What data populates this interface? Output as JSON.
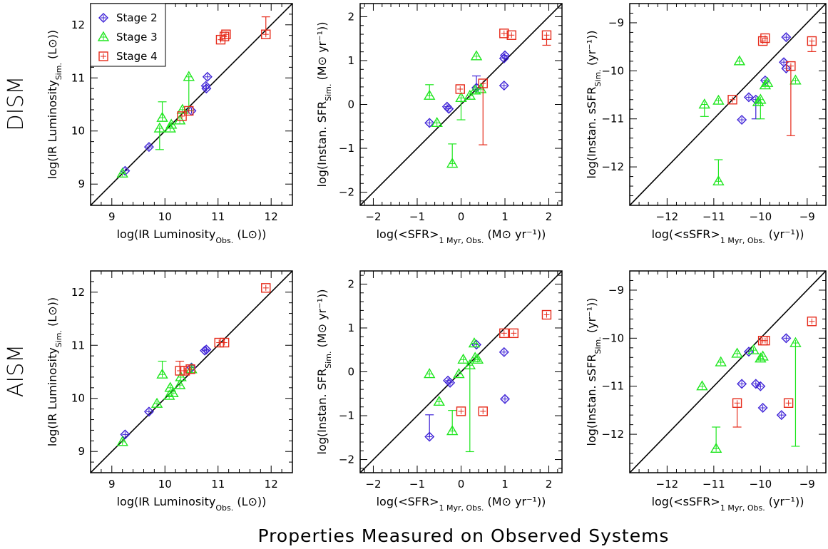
{
  "figure": {
    "xlabel": "Properties Measured on Observed Systems",
    "row_labels": [
      "DISM",
      "AISM"
    ]
  },
  "legend": [
    {
      "label": "Stage 2",
      "marker": "diamond",
      "color": "#3b1fd6"
    },
    {
      "label": "Stage 3",
      "marker": "triangle",
      "color": "#1ee61e"
    },
    {
      "label": "Stage 4",
      "marker": "square",
      "color": "#e62a1a"
    }
  ],
  "chart_data": [
    {
      "type": "scatter",
      "id": "dism-ir",
      "xlabel": "log(IR Luminosity_Obs. (L⊙))",
      "ylabel": "log(IR Luminosity_Sim. (L⊙))",
      "xlim": [
        8.6,
        12.4
      ],
      "ylim": [
        8.6,
        12.4
      ],
      "xticks": [
        9,
        10,
        11,
        12
      ],
      "yticks": [
        9,
        10,
        11,
        12
      ],
      "one_to_one_line": true,
      "legend": "top-left",
      "series": [
        {
          "name": "Stage 2",
          "marker": "diamond",
          "color": "#3b1fd6",
          "points": [
            [
              9.25,
              9.25,
              null,
              null
            ],
            [
              9.7,
              9.7,
              null,
              null
            ],
            [
              10.5,
              10.38,
              null,
              null
            ],
            [
              10.77,
              10.85,
              null,
              null
            ],
            [
              10.78,
              10.8,
              null,
              null
            ],
            [
              10.8,
              11.02,
              null,
              null
            ]
          ]
        },
        {
          "name": "Stage 3",
          "marker": "triangle",
          "color": "#1ee61e",
          "points": [
            [
              9.2,
              9.2,
              null,
              null
            ],
            [
              9.9,
              10.05,
              9.65,
              null
            ],
            [
              9.95,
              10.25,
              null,
              10.55
            ],
            [
              10.1,
              10.05,
              null,
              null
            ],
            [
              10.12,
              10.12,
              null,
              null
            ],
            [
              10.28,
              10.2,
              null,
              null
            ],
            [
              10.33,
              10.4,
              null,
              null
            ],
            [
              10.45,
              11.02,
              10.38,
              null
            ]
          ]
        },
        {
          "name": "Stage 4",
          "marker": "square",
          "color": "#e62a1a",
          "points": [
            [
              10.32,
              10.28,
              null,
              null
            ],
            [
              10.45,
              10.38,
              null,
              null
            ],
            [
              11.05,
              11.72,
              null,
              null
            ],
            [
              11.12,
              11.78,
              null,
              null
            ],
            [
              11.15,
              11.82,
              null,
              null
            ],
            [
              11.9,
              11.82,
              null,
              12.15
            ]
          ]
        }
      ]
    },
    {
      "type": "scatter",
      "id": "dism-sfr",
      "xlabel": "log(<SFR>_1 Myr, Obs. (M⊙ yr⁻¹))",
      "ylabel": "log(Instan. SFR_Sim. (M⊙ yr⁻¹))",
      "xlim": [
        -2.3,
        2.3
      ],
      "ylim": [
        -2.3,
        2.3
      ],
      "xticks": [
        -2,
        -1,
        0,
        1,
        2
      ],
      "yticks": [
        -2,
        -1,
        0,
        1,
        2
      ],
      "one_to_one_line": true,
      "series": [
        {
          "name": "Stage 2",
          "marker": "diamond",
          "color": "#3b1fd6",
          "points": [
            [
              -0.72,
              -0.42,
              null,
              null
            ],
            [
              -0.32,
              -0.05,
              null,
              null
            ],
            [
              -0.28,
              -0.1,
              null,
              null
            ],
            [
              0.35,
              0.38,
              null,
              0.65
            ],
            [
              0.98,
              1.05,
              null,
              null
            ],
            [
              1.0,
              1.12,
              null,
              null
            ],
            [
              0.98,
              0.43,
              null,
              null
            ]
          ]
        },
        {
          "name": "Stage 3",
          "marker": "triangle",
          "color": "#1ee61e",
          "points": [
            [
              -0.72,
              0.2,
              null,
              0.45
            ],
            [
              -0.55,
              -0.42,
              null,
              null
            ],
            [
              -0.2,
              -1.35,
              null,
              -0.9
            ],
            [
              0.0,
              0.15,
              -0.35,
              null
            ],
            [
              0.2,
              0.2,
              null,
              null
            ],
            [
              0.32,
              0.32,
              null,
              null
            ],
            [
              0.35,
              1.1,
              null,
              null
            ],
            [
              0.45,
              0.35,
              null,
              null
            ]
          ]
        },
        {
          "name": "Stage 4",
          "marker": "square",
          "color": "#e62a1a",
          "points": [
            [
              -0.02,
              0.35,
              null,
              null
            ],
            [
              0.5,
              0.48,
              -0.92,
              null
            ],
            [
              0.98,
              1.62,
              null,
              null
            ],
            [
              1.15,
              1.58,
              null,
              null
            ],
            [
              1.95,
              1.58,
              1.35,
              null
            ]
          ]
        }
      ]
    },
    {
      "type": "scatter",
      "id": "dism-ssfr",
      "xlabel": "log(<sSFR>_1 Myr, Obs. (yr⁻¹))",
      "ylabel": "log(Instan. sSFR_Sim. (yr⁻¹))",
      "xlim": [
        -12.8,
        -8.6
      ],
      "ylim": [
        -12.8,
        -8.6
      ],
      "xticks": [
        -12,
        -11,
        -10,
        -9
      ],
      "yticks": [
        -12,
        -11,
        -10,
        -9
      ],
      "one_to_one_line": true,
      "series": [
        {
          "name": "Stage 2",
          "marker": "diamond",
          "color": "#3b1fd6",
          "points": [
            [
              -10.4,
              -11.02,
              null,
              null
            ],
            [
              -10.25,
              -10.55,
              null,
              null
            ],
            [
              -10.1,
              -10.6,
              -11.0,
              null
            ],
            [
              -9.5,
              -9.82,
              null,
              null
            ],
            [
              -9.45,
              -9.95,
              null,
              null
            ],
            [
              -9.45,
              -9.3,
              null,
              null
            ],
            [
              -9.9,
              -10.2,
              null,
              null
            ]
          ]
        },
        {
          "name": "Stage 3",
          "marker": "triangle",
          "color": "#1ee61e",
          "points": [
            [
              -11.2,
              -10.7,
              -10.95,
              null
            ],
            [
              -10.9,
              -10.62,
              null,
              null
            ],
            [
              -10.45,
              -9.8,
              null,
              null
            ],
            [
              -10.0,
              -10.6,
              -11.0,
              null
            ],
            [
              -10.05,
              -10.65,
              null,
              null
            ],
            [
              -9.9,
              -10.3,
              null,
              null
            ],
            [
              -9.85,
              -10.25,
              null,
              null
            ],
            [
              -9.25,
              -10.2,
              null,
              null
            ],
            [
              -10.9,
              -12.3,
              null,
              -11.85
            ]
          ]
        },
        {
          "name": "Stage 4",
          "marker": "square",
          "color": "#e62a1a",
          "points": [
            [
              -10.6,
              -10.6,
              null,
              null
            ],
            [
              -9.95,
              -9.38,
              null,
              null
            ],
            [
              -9.9,
              -9.32,
              null,
              null
            ],
            [
              -9.35,
              -9.9,
              -11.35,
              null
            ],
            [
              -8.9,
              -9.38,
              -9.6,
              null
            ]
          ]
        }
      ]
    },
    {
      "type": "scatter",
      "id": "aism-ir",
      "xlabel": "log(IR Luminosity_Obs. (L⊙))",
      "ylabel": "log(IR Luminosity_Sim. (L⊙))",
      "xlim": [
        8.6,
        12.4
      ],
      "ylim": [
        8.6,
        12.4
      ],
      "xticks": [
        9,
        10,
        11,
        12
      ],
      "yticks": [
        9,
        10,
        11,
        12
      ],
      "one_to_one_line": true,
      "series": [
        {
          "name": "Stage 2",
          "marker": "diamond",
          "color": "#3b1fd6",
          "points": [
            [
              9.25,
              9.32,
              null,
              null
            ],
            [
              9.7,
              9.75,
              null,
              null
            ],
            [
              10.5,
              10.58,
              null,
              null
            ],
            [
              10.75,
              10.9,
              null,
              null
            ],
            [
              10.78,
              10.92,
              null,
              null
            ]
          ]
        },
        {
          "name": "Stage 3",
          "marker": "triangle",
          "color": "#1ee61e",
          "points": [
            [
              9.2,
              9.18,
              null,
              null
            ],
            [
              9.85,
              9.9,
              null,
              null
            ],
            [
              9.95,
              10.45,
              null,
              10.7
            ],
            [
              10.08,
              10.05,
              null,
              null
            ],
            [
              10.1,
              10.2,
              null,
              null
            ],
            [
              10.15,
              10.1,
              null,
              null
            ],
            [
              10.28,
              10.25,
              null,
              null
            ],
            [
              10.3,
              10.4,
              null,
              null
            ],
            [
              10.5,
              10.55,
              null,
              null
            ]
          ]
        },
        {
          "name": "Stage 4",
          "marker": "square",
          "color": "#e62a1a",
          "points": [
            [
              10.28,
              10.52,
              null,
              10.7
            ],
            [
              10.38,
              10.52,
              null,
              null
            ],
            [
              10.48,
              10.55,
              null,
              null
            ],
            [
              11.02,
              11.05,
              null,
              null
            ],
            [
              11.12,
              11.05,
              null,
              null
            ],
            [
              11.9,
              12.08,
              null,
              null
            ]
          ]
        }
      ]
    },
    {
      "type": "scatter",
      "id": "aism-sfr",
      "xlabel": "log(<SFR>_1 Myr, Obs. (M⊙ yr⁻¹))",
      "ylabel": "log(Instan. SFR_Sim. (M⊙ yr⁻¹))",
      "xlim": [
        -2.3,
        2.3
      ],
      "ylim": [
        -2.3,
        2.3
      ],
      "xticks": [
        -2,
        -1,
        0,
        1,
        2
      ],
      "yticks": [
        -2,
        -1,
        0,
        1,
        2
      ],
      "one_to_one_line": true,
      "series": [
        {
          "name": "Stage 2",
          "marker": "diamond",
          "color": "#3b1fd6",
          "points": [
            [
              -0.72,
              -1.48,
              -0.98,
              null
            ],
            [
              -0.3,
              -0.2,
              null,
              null
            ],
            [
              -0.25,
              -0.25,
              null,
              null
            ],
            [
              0.35,
              0.62,
              null,
              null
            ],
            [
              0.98,
              0.45,
              null,
              null
            ],
            [
              1.0,
              -0.62,
              null,
              null
            ]
          ]
        },
        {
          "name": "Stage 3",
          "marker": "triangle",
          "color": "#1ee61e",
          "points": [
            [
              -0.72,
              -0.05,
              null,
              null
            ],
            [
              -0.5,
              -0.68,
              null,
              null
            ],
            [
              -0.2,
              -1.35,
              -0.88,
              null
            ],
            [
              -0.05,
              -0.05,
              null,
              null
            ],
            [
              0.05,
              0.28,
              null,
              null
            ],
            [
              0.2,
              0.15,
              -1.82,
              null
            ],
            [
              0.3,
              0.65,
              null,
              null
            ],
            [
              0.32,
              0.32,
              null,
              null
            ],
            [
              0.38,
              0.28,
              null,
              null
            ]
          ]
        },
        {
          "name": "Stage 4",
          "marker": "square",
          "color": "#e62a1a",
          "points": [
            [
              0.0,
              -0.9,
              null,
              null
            ],
            [
              0.5,
              -0.9,
              null,
              null
            ],
            [
              0.98,
              0.88,
              null,
              null
            ],
            [
              1.2,
              0.88,
              null,
              null
            ],
            [
              1.95,
              1.3,
              null,
              null
            ]
          ]
        }
      ]
    },
    {
      "type": "scatter",
      "id": "aism-ssfr",
      "xlabel": "log(<sSFR>_1 Myr, Obs. (yr⁻¹))",
      "ylabel": "log(Instan. sSFR_Sim. (yr⁻¹))",
      "xlim": [
        -12.8,
        -8.6
      ],
      "ylim": [
        -12.8,
        -8.6
      ],
      "xticks": [
        -12,
        -11,
        -10,
        -9
      ],
      "yticks": [
        -12,
        -11,
        -10,
        -9
      ],
      "one_to_one_line": true,
      "series": [
        {
          "name": "Stage 2",
          "marker": "diamond",
          "color": "#3b1fd6",
          "points": [
            [
              -10.4,
              -10.95,
              null,
              null
            ],
            [
              -10.25,
              -10.28,
              null,
              null
            ],
            [
              -10.1,
              -10.95,
              null,
              null
            ],
            [
              -9.95,
              -11.45,
              null,
              null
            ],
            [
              -9.55,
              -11.6,
              null,
              null
            ],
            [
              -9.45,
              -10.0,
              null,
              null
            ],
            [
              -10.0,
              -11.0,
              null,
              null
            ]
          ]
        },
        {
          "name": "Stage 3",
          "marker": "triangle",
          "color": "#1ee61e",
          "points": [
            [
              -11.25,
              -11.0,
              null,
              null
            ],
            [
              -10.85,
              -10.5,
              null,
              null
            ],
            [
              -10.5,
              -10.32,
              null,
              null
            ],
            [
              -10.15,
              -10.25,
              null,
              null
            ],
            [
              -10.0,
              -10.42,
              null,
              null
            ],
            [
              -9.95,
              -10.38,
              null,
              null
            ],
            [
              -9.25,
              -10.1,
              -12.25,
              null
            ],
            [
              -10.95,
              -12.3,
              null,
              -11.85
            ]
          ]
        },
        {
          "name": "Stage 4",
          "marker": "square",
          "color": "#e62a1a",
          "points": [
            [
              -10.5,
              -11.35,
              -11.85,
              null
            ],
            [
              -9.95,
              -10.05,
              null,
              null
            ],
            [
              -9.9,
              -10.05,
              null,
              null
            ],
            [
              -9.4,
              -11.35,
              null,
              null
            ],
            [
              -8.9,
              -9.65,
              null,
              null
            ]
          ]
        }
      ]
    }
  ]
}
